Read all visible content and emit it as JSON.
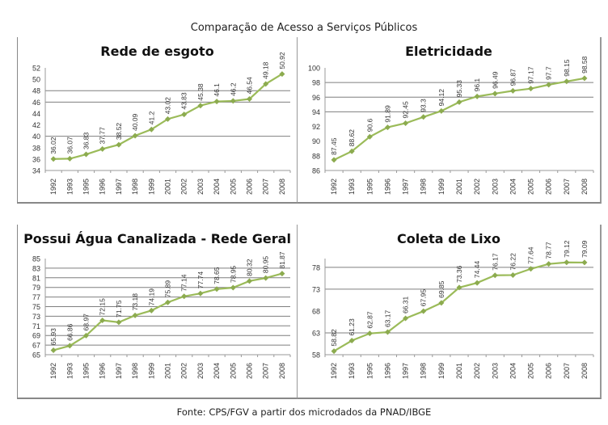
{
  "title": "Comparação de Acesso a Serviços Públicos",
  "source": "Fonte: CPS/FGV a partir dos microdados da PNAD/IBGE",
  "colors": {
    "line": "#9bbb59",
    "marker": "#8cab4f",
    "grid": "#7f7f7f"
  },
  "chart_data": [
    {
      "type": "line",
      "title": "Rede de esgoto",
      "xlabel": "",
      "ylabel": "",
      "categories": [
        "1992",
        "1993",
        "1995",
        "1996",
        "1997",
        "1998",
        "1999",
        "2001",
        "2002",
        "2003",
        "2004",
        "2005",
        "2006",
        "2007",
        "2008"
      ],
      "values": [
        36.02,
        36.07,
        36.83,
        37.77,
        38.52,
        40.09,
        41.2,
        43.02,
        43.83,
        45.38,
        46.1,
        46.2,
        46.54,
        49.18,
        50.92
      ],
      "value_labels": [
        "36.02",
        "36.07",
        "36.83",
        "37.77",
        "38.52",
        "40.09",
        "41.2",
        "43.02",
        "43.83",
        "45.38",
        "46.1",
        "46.2",
        "46.54",
        "49.18",
        "50.92"
      ],
      "ylim": [
        34,
        52
      ],
      "yticks": [
        34,
        36,
        38,
        40,
        42,
        44,
        46,
        48,
        50,
        52
      ],
      "gridlines": [
        40,
        46,
        48
      ],
      "legend": "none"
    },
    {
      "type": "line",
      "title": "Eletricidade",
      "xlabel": "",
      "ylabel": "",
      "categories": [
        "1992",
        "1993",
        "1995",
        "1996",
        "1997",
        "1998",
        "1999",
        "2001",
        "2002",
        "2003",
        "2004",
        "2005",
        "2006",
        "2007",
        "2008"
      ],
      "values": [
        87.45,
        88.62,
        90.6,
        91.89,
        92.45,
        93.3,
        94.12,
        95.33,
        96.1,
        96.49,
        96.87,
        97.17,
        97.7,
        98.15,
        98.58
      ],
      "value_labels": [
        "87.45",
        "88.62",
        "90.6",
        "91.89",
        "92.45",
        "93.3",
        "94.12",
        "95.33",
        "96.1",
        "96.49",
        "96.87",
        "97.17",
        "97.7",
        "98.15",
        "98.58"
      ],
      "ylim": [
        86,
        100
      ],
      "yticks": [
        86,
        88,
        90,
        92,
        94,
        96,
        98,
        100
      ],
      "gridlines": [
        94,
        96,
        98
      ],
      "legend": "none"
    },
    {
      "type": "line",
      "title": "Possui Água Canalizada - Rede Geral",
      "xlabel": "",
      "ylabel": "",
      "categories": [
        "1992",
        "1993",
        "1995",
        "1996",
        "1997",
        "1998",
        "1999",
        "2001",
        "2002",
        "2003",
        "2004",
        "2005",
        "2006",
        "2007",
        "2008"
      ],
      "values": [
        65.93,
        66.86,
        68.97,
        72.15,
        71.75,
        73.18,
        74.19,
        75.89,
        77.14,
        77.74,
        78.65,
        78.95,
        80.32,
        80.95,
        81.87
      ],
      "value_labels": [
        "65.93",
        "66.86",
        "68.97",
        "72.15",
        "71.75",
        "73.18",
        "74.19",
        "75.89",
        "77.14",
        "77.74",
        "78.65",
        "78.95",
        "80.32",
        "80.95",
        "81.87"
      ],
      "ylim": [
        65,
        85
      ],
      "yticks": [
        65,
        67,
        69,
        71,
        73,
        75,
        77,
        79,
        81,
        83,
        85
      ],
      "gridlines": [
        67,
        69,
        71,
        73,
        75,
        77,
        79,
        81,
        83
      ],
      "legend": "none"
    },
    {
      "type": "line",
      "title": "Coleta de Lixo",
      "xlabel": "",
      "ylabel": "",
      "categories": [
        "1992",
        "1993",
        "1995",
        "1996",
        "1997",
        "1998",
        "1999",
        "2001",
        "2002",
        "2003",
        "2004",
        "2005",
        "2006",
        "2007",
        "2008"
      ],
      "values": [
        58.82,
        61.23,
        62.87,
        63.17,
        66.31,
        67.95,
        69.85,
        73.36,
        74.44,
        76.17,
        76.22,
        77.64,
        78.77,
        79.12,
        79.09
      ],
      "value_labels": [
        "58.82",
        "61.23",
        "62.87",
        "63.17",
        "66.31",
        "67.95",
        "69.85",
        "73.36",
        "74.44",
        "76.17",
        "76.22",
        "77.64",
        "78.77",
        "79.12",
        "79.09"
      ],
      "ylim": [
        58,
        80
      ],
      "yticks": [
        58,
        63,
        68,
        73,
        78
      ],
      "gridlines": [
        63,
        73,
        78
      ],
      "legend": "none"
    }
  ]
}
